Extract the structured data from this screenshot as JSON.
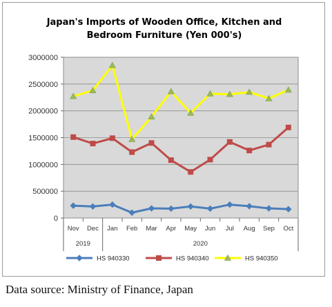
{
  "chart_data": {
    "type": "line",
    "title_lines": [
      "Japan's Imports of  Wooden  Office, Kitchen and",
      "Bedroom Furniture (Yen 000's)"
    ],
    "categories": [
      "Nov",
      "Dec",
      "Jan",
      "Feb",
      "Mar",
      "Apr",
      "May",
      "Jun",
      "Jul",
      "Aug",
      "Sep",
      "Oct"
    ],
    "year_groups": [
      {
        "label": "2019",
        "from": 0,
        "to": 1
      },
      {
        "label": "2020",
        "from": 2,
        "to": 11
      }
    ],
    "yticks": [
      "0",
      "500000",
      "1000000",
      "1500000",
      "2000000",
      "2500000",
      "3000000"
    ],
    "ylim": [
      0,
      3000000
    ],
    "grid": true,
    "legend_position": "bottom",
    "series": [
      {
        "name": "HS 940330",
        "color": "#4a7ebb",
        "marker": "diamond",
        "values": [
          230000,
          215000,
          250000,
          100000,
          180000,
          175000,
          215000,
          175000,
          250000,
          220000,
          180000,
          165000
        ]
      },
      {
        "name": "HS 940340",
        "color": "#be4b48",
        "marker": "square",
        "values": [
          1510000,
          1390000,
          1490000,
          1230000,
          1400000,
          1080000,
          860000,
          1090000,
          1420000,
          1260000,
          1370000,
          1690000
        ]
      },
      {
        "name": "HS 940350",
        "color": "#ffff00",
        "marker": "triangle",
        "values": [
          2270000,
          2380000,
          2850000,
          1470000,
          1890000,
          2360000,
          1960000,
          2320000,
          2310000,
          2350000,
          2230000,
          2390000
        ]
      }
    ]
  },
  "plot_background": "#d9d9d9",
  "source_text": "Data source: Ministry of Finance, Japan"
}
